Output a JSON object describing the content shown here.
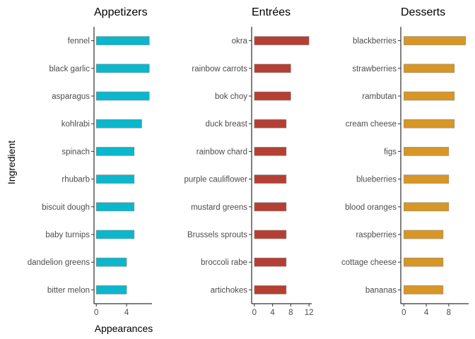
{
  "y_axis_title": "Ingredient",
  "x_axis_title": "Appearances",
  "chart_data": [
    {
      "type": "bar",
      "orientation": "horizontal",
      "title": "Appetizers",
      "color": "#0bb7cc",
      "categories": [
        "fennel",
        "black garlic",
        "asparagus",
        "kohlrabi",
        "spinach",
        "rhubarb",
        "biscuit dough",
        "baby turnips",
        "dandelion greens",
        "bitter melon"
      ],
      "values": [
        7,
        7,
        7,
        6,
        5,
        5,
        5,
        5,
        4,
        4
      ],
      "xlim": [
        -0.3,
        7.35
      ],
      "ticks": [
        0,
        4
      ],
      "tick_labels": [
        "0",
        "4"
      ]
    },
    {
      "type": "bar",
      "orientation": "horizontal",
      "title": "Entrées",
      "color": "#b53f33",
      "categories": [
        "okra",
        "rainbow carrots",
        "bok choy",
        "duck breast",
        "rainbow chard",
        "purple cauliflower",
        "mustard greens",
        "Brussels sprouts",
        "broccoli rabe",
        "artichokes"
      ],
      "values": [
        12,
        8,
        8,
        7,
        7,
        7,
        7,
        7,
        7,
        7
      ],
      "xlim": [
        -0.6,
        12.6
      ],
      "ticks": [
        0,
        4,
        8,
        12
      ],
      "tick_labels": [
        "0",
        "4",
        "8",
        "12"
      ]
    },
    {
      "type": "bar",
      "orientation": "horizontal",
      "title": "Desserts",
      "color": "#d89624",
      "categories": [
        "blackberries",
        "strawberries",
        "rambutan",
        "cream cheese",
        "figs",
        "blueberries",
        "blood oranges",
        "raspberries",
        "cottage cheese",
        "bananas"
      ],
      "values": [
        11,
        9,
        9,
        9,
        8,
        8,
        8,
        7,
        7,
        7
      ],
      "xlim": [
        -0.55,
        11.55
      ],
      "ticks": [
        0,
        4,
        8
      ],
      "tick_labels": [
        "0",
        "4",
        "8"
      ]
    }
  ]
}
